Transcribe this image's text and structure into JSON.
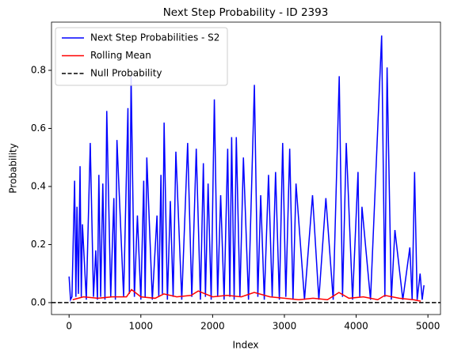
{
  "chart_data": {
    "type": "line",
    "title": "Next Step Probability - ID 2393",
    "xlabel": "Index",
    "ylabel": "Probability",
    "series": [
      {
        "name": "Next Step Probabilities - S2",
        "color": "#0000ff",
        "x": [
          0,
          20,
          40,
          77,
          95,
          110,
          130,
          153,
          170,
          186,
          240,
          295,
          340,
          372,
          395,
          415,
          440,
          470,
          500,
          525,
          580,
          624,
          645,
          667,
          760,
          820,
          840,
          864,
          910,
          952,
          1000,
          1040,
          1060,
          1083,
          1160,
          1225,
          1250,
          1280,
          1300,
          1324,
          1370,
          1411,
          1450,
          1488,
          1570,
          1652,
          1710,
          1772,
          1830,
          1871,
          1900,
          1937,
          1980,
          2024,
          2070,
          2112,
          2160,
          2210,
          2240,
          2265,
          2300,
          2330,
          2380,
          2429,
          2500,
          2582,
          2630,
          2670,
          2720,
          2779,
          2830,
          2877,
          2930,
          2976,
          3020,
          3074,
          3120,
          3162,
          3280,
          3392,
          3480,
          3578,
          3680,
          3764,
          3810,
          3862,
          3950,
          4026,
          4050,
          4081,
          4200,
          4355,
          4400,
          4431,
          4490,
          4540,
          4650,
          4748,
          4780,
          4814,
          4850,
          4891,
          4920,
          4945
        ],
        "values": [
          0.09,
          0.01,
          0.02,
          0.42,
          0.02,
          0.33,
          0.03,
          0.47,
          0.02,
          0.27,
          0.01,
          0.55,
          0.02,
          0.18,
          0.01,
          0.44,
          0.02,
          0.41,
          0.01,
          0.66,
          0.02,
          0.36,
          0.01,
          0.56,
          0.02,
          0.67,
          0.03,
          0.78,
          0.02,
          0.3,
          0.01,
          0.42,
          0.02,
          0.5,
          0.01,
          0.3,
          0.02,
          0.44,
          0.03,
          0.62,
          0.01,
          0.35,
          0.02,
          0.52,
          0.01,
          0.55,
          0.02,
          0.53,
          0.01,
          0.48,
          0.02,
          0.41,
          0.01,
          0.7,
          0.02,
          0.37,
          0.01,
          0.53,
          0.02,
          0.57,
          0.01,
          0.57,
          0.02,
          0.5,
          0.01,
          0.75,
          0.02,
          0.37,
          0.01,
          0.44,
          0.02,
          0.45,
          0.01,
          0.55,
          0.02,
          0.53,
          0.01,
          0.41,
          0.01,
          0.37,
          0.01,
          0.36,
          0.01,
          0.78,
          0.02,
          0.55,
          0.01,
          0.45,
          0.02,
          0.33,
          0.01,
          0.92,
          0.02,
          0.81,
          0.01,
          0.25,
          0.01,
          0.19,
          0.01,
          0.45,
          0.01,
          0.1,
          0.01,
          0.06
        ]
      },
      {
        "name": "Rolling Mean",
        "color": "#ff0000",
        "x": [
          50,
          200,
          400,
          600,
          800,
          870,
          1000,
          1200,
          1320,
          1500,
          1700,
          1800,
          2000,
          2200,
          2400,
          2580,
          2800,
          3000,
          3200,
          3400,
          3600,
          3760,
          3900,
          4100,
          4300,
          4400,
          4600,
          4800,
          4900
        ],
        "values": [
          0.01,
          0.02,
          0.015,
          0.02,
          0.02,
          0.045,
          0.02,
          0.015,
          0.03,
          0.02,
          0.025,
          0.04,
          0.02,
          0.025,
          0.02,
          0.035,
          0.02,
          0.015,
          0.01,
          0.015,
          0.01,
          0.035,
          0.015,
          0.02,
          0.01,
          0.025,
          0.015,
          0.01,
          0.005
        ]
      }
    ],
    "hline": {
      "name": "Null Probability",
      "value": 0,
      "color": "#000000"
    },
    "xlim": [
      -245,
      5175
    ],
    "ylim": [
      -0.041,
      0.966
    ],
    "xticks": [
      0,
      1000,
      2000,
      3000,
      4000,
      5000
    ],
    "yticks": [
      {
        "value": 0,
        "label": "0.0"
      },
      0.2,
      0.4,
      0.6,
      0.8
    ],
    "legend": "upper left"
  }
}
